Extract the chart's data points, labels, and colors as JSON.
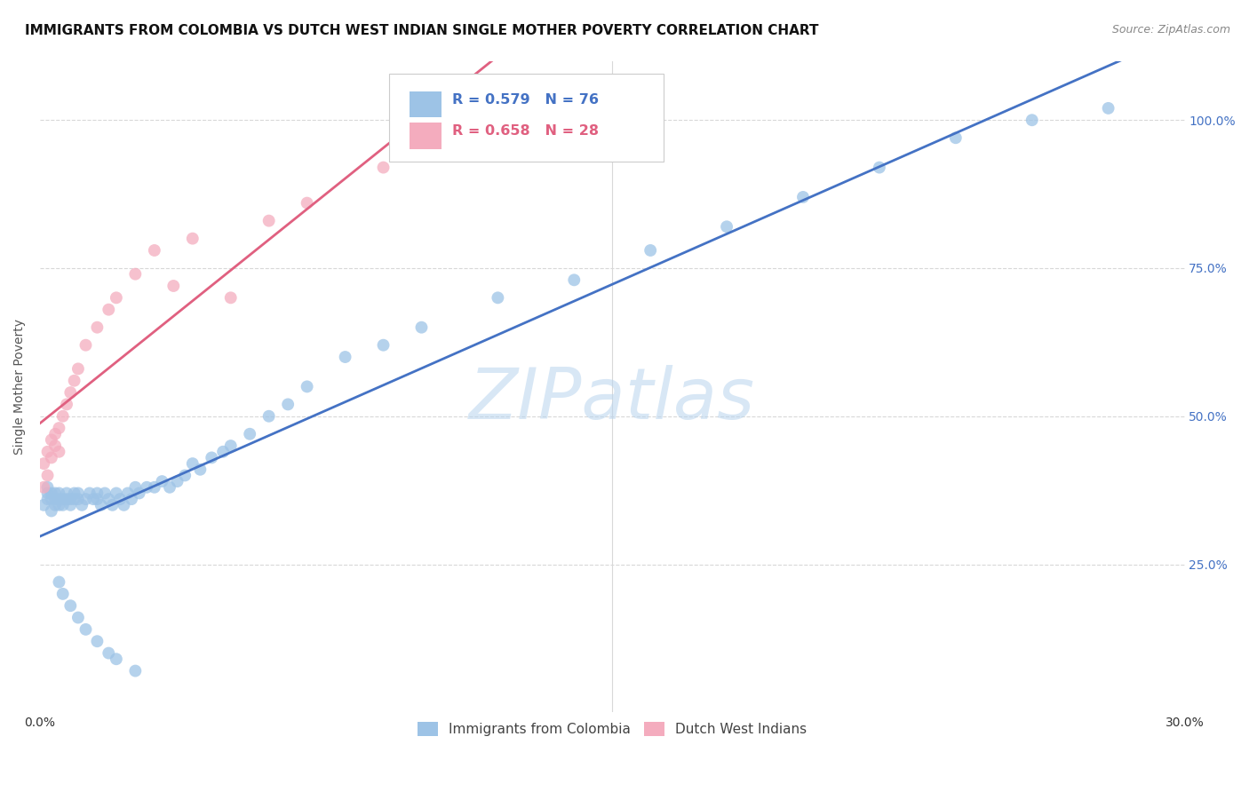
{
  "title": "IMMIGRANTS FROM COLOMBIA VS DUTCH WEST INDIAN SINGLE MOTHER POVERTY CORRELATION CHART",
  "source": "Source: ZipAtlas.com",
  "ylabel": "Single Mother Poverty",
  "watermark": "ZIPatlas",
  "background_color": "#ffffff",
  "grid_color": "#d8d8d8",
  "blue_line_color": "#4472c4",
  "pink_line_color": "#e06080",
  "blue_scatter_color": "#9dc3e6",
  "pink_scatter_color": "#f4acbe",
  "blue_text_color": "#4472c4",
  "pink_text_color": "#e06080",
  "right_tick_color": "#4472c4",
  "title_fontsize": 11,
  "axis_label_fontsize": 10,
  "tick_fontsize": 10,
  "legend_fontsize": 11,
  "xlim": [
    0.0,
    0.3
  ],
  "ylim": [
    0.0,
    1.1
  ],
  "ytick_positions": [
    0.25,
    0.5,
    0.75,
    1.0
  ],
  "ytick_labels": [
    "25.0%",
    "50.0%",
    "75.0%",
    "100.0%"
  ],
  "xtick_positions": [
    0.0,
    0.15,
    0.3
  ],
  "xtick_labels": [
    "0.0%",
    "",
    "30.0%"
  ],
  "legend_R1": "0.579",
  "legend_N1": "76",
  "legend_R2": "0.658",
  "legend_N2": "28",
  "label1": "Immigrants from Colombia",
  "label2": "Dutch West Indians",
  "colombia_x": [
    0.001,
    0.002,
    0.002,
    0.002,
    0.003,
    0.003,
    0.003,
    0.004,
    0.004,
    0.004,
    0.005,
    0.005,
    0.005,
    0.006,
    0.006,
    0.007,
    0.007,
    0.008,
    0.008,
    0.009,
    0.009,
    0.01,
    0.01,
    0.011,
    0.012,
    0.013,
    0.014,
    0.015,
    0.015,
    0.016,
    0.017,
    0.018,
    0.019,
    0.02,
    0.021,
    0.022,
    0.023,
    0.024,
    0.025,
    0.026,
    0.028,
    0.03,
    0.032,
    0.034,
    0.036,
    0.038,
    0.04,
    0.042,
    0.045,
    0.048,
    0.05,
    0.055,
    0.06,
    0.065,
    0.07,
    0.08,
    0.09,
    0.1,
    0.12,
    0.14,
    0.16,
    0.18,
    0.2,
    0.22,
    0.24,
    0.26,
    0.28,
    0.005,
    0.006,
    0.008,
    0.01,
    0.012,
    0.015,
    0.018,
    0.02,
    0.025
  ],
  "colombia_y": [
    0.35,
    0.37,
    0.36,
    0.38,
    0.34,
    0.36,
    0.37,
    0.35,
    0.37,
    0.36,
    0.36,
    0.35,
    0.37,
    0.36,
    0.35,
    0.36,
    0.37,
    0.36,
    0.35,
    0.37,
    0.36,
    0.36,
    0.37,
    0.35,
    0.36,
    0.37,
    0.36,
    0.36,
    0.37,
    0.35,
    0.37,
    0.36,
    0.35,
    0.37,
    0.36,
    0.35,
    0.37,
    0.36,
    0.38,
    0.37,
    0.38,
    0.38,
    0.39,
    0.38,
    0.39,
    0.4,
    0.42,
    0.41,
    0.43,
    0.44,
    0.45,
    0.47,
    0.5,
    0.52,
    0.55,
    0.6,
    0.62,
    0.65,
    0.7,
    0.73,
    0.78,
    0.82,
    0.87,
    0.92,
    0.97,
    1.0,
    1.02,
    0.22,
    0.2,
    0.18,
    0.16,
    0.14,
    0.12,
    0.1,
    0.09,
    0.07
  ],
  "dutch_x": [
    0.001,
    0.001,
    0.002,
    0.002,
    0.003,
    0.003,
    0.004,
    0.004,
    0.005,
    0.005,
    0.006,
    0.007,
    0.008,
    0.009,
    0.01,
    0.012,
    0.015,
    0.018,
    0.02,
    0.025,
    0.03,
    0.035,
    0.04,
    0.05,
    0.06,
    0.07,
    0.09,
    0.12
  ],
  "dutch_y": [
    0.38,
    0.42,
    0.4,
    0.44,
    0.43,
    0.46,
    0.45,
    0.47,
    0.44,
    0.48,
    0.5,
    0.52,
    0.54,
    0.56,
    0.58,
    0.62,
    0.65,
    0.68,
    0.7,
    0.74,
    0.78,
    0.72,
    0.8,
    0.7,
    0.83,
    0.86,
    0.92,
    0.98
  ]
}
